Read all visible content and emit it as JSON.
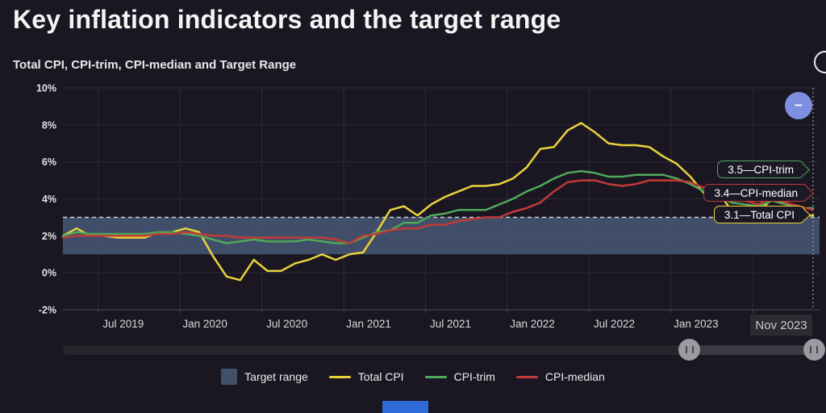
{
  "header": {
    "title": "Key inflation indicators and the target range",
    "subtitle": "Total CPI, CPI-trim, CPI-median and Target Range"
  },
  "chart_data": {
    "type": "line",
    "title": "Total CPI, CPI-trim, CPI-median and Target Range",
    "x_unit": "month",
    "x_range": [
      "Apr 2019",
      "Nov 2023"
    ],
    "x_tick_labels": [
      "Jul 2019",
      "Jan 2020",
      "Jul 2020",
      "Jan 2021",
      "Jul 2021",
      "Jan 2022",
      "Jul 2022",
      "Jan 2023"
    ],
    "x_tick_month_indices": [
      3,
      9,
      15,
      21,
      27,
      33,
      39,
      45
    ],
    "extra_gridline_month_indices": [
      51
    ],
    "ylim": [
      -2,
      10
    ],
    "y_tick_values": [
      -2,
      0,
      2,
      4,
      6,
      8,
      10
    ],
    "y_tick_suffix": "%",
    "grid": true,
    "target_range": {
      "label": "Target range",
      "low": 1,
      "high": 3,
      "color": "#445470",
      "top_edge": "dashed"
    },
    "end_line": {
      "x_label": "Nov 2023",
      "style": "dotted"
    },
    "series": [
      {
        "name": "Total CPI",
        "color": "#e9d23c",
        "last_value": 3.1,
        "end_label": "3.1—Total CPI",
        "values": [
          2.0,
          2.4,
          2.0,
          2.0,
          1.9,
          1.9,
          1.9,
          2.2,
          2.2,
          2.4,
          2.2,
          0.9,
          -0.2,
          -0.4,
          0.7,
          0.1,
          0.1,
          0.5,
          0.7,
          1.0,
          0.7,
          1.0,
          1.1,
          2.2,
          3.4,
          3.6,
          3.1,
          3.7,
          4.1,
          4.4,
          4.7,
          4.7,
          4.8,
          5.1,
          5.7,
          6.7,
          6.8,
          7.7,
          8.1,
          7.6,
          7.0,
          6.9,
          6.9,
          6.8,
          6.3,
          5.9,
          5.2,
          4.3,
          4.4,
          3.4,
          2.8,
          3.3,
          4.0,
          3.8,
          3.1,
          3.1
        ]
      },
      {
        "name": "CPI-trim",
        "color": "#4fa85a",
        "last_value": 3.5,
        "end_label": "3.5—CPI-trim",
        "values": [
          2.0,
          2.2,
          2.1,
          2.1,
          2.1,
          2.1,
          2.1,
          2.2,
          2.2,
          2.1,
          2.0,
          1.8,
          1.6,
          1.7,
          1.8,
          1.7,
          1.7,
          1.7,
          1.8,
          1.7,
          1.6,
          1.6,
          1.9,
          2.2,
          2.3,
          2.7,
          2.7,
          3.1,
          3.2,
          3.4,
          3.4,
          3.4,
          3.7,
          4.0,
          4.4,
          4.7,
          5.1,
          5.4,
          5.5,
          5.4,
          5.2,
          5.2,
          5.3,
          5.3,
          5.3,
          5.1,
          4.8,
          4.4,
          4.2,
          3.8,
          3.7,
          3.6,
          3.9,
          3.7,
          3.5,
          3.5
        ]
      },
      {
        "name": "CPI-median",
        "color": "#c13a38",
        "last_value": 3.4,
        "end_label": "3.4—CPI-median",
        "values": [
          1.9,
          2.0,
          2.0,
          2.0,
          2.0,
          2.0,
          2.0,
          2.1,
          2.1,
          2.2,
          2.1,
          2.0,
          2.0,
          1.9,
          1.9,
          1.9,
          1.9,
          1.9,
          1.9,
          1.9,
          1.8,
          1.6,
          2.0,
          2.1,
          2.3,
          2.4,
          2.4,
          2.6,
          2.6,
          2.8,
          2.9,
          3.0,
          3.0,
          3.3,
          3.5,
          3.8,
          4.4,
          4.9,
          5.0,
          5.0,
          4.8,
          4.7,
          4.8,
          5.0,
          5.0,
          5.0,
          4.9,
          4.6,
          4.3,
          3.9,
          3.9,
          3.7,
          4.1,
          3.8,
          3.6,
          3.4
        ]
      }
    ],
    "legend_position": "bottom"
  },
  "legend": {
    "items": [
      {
        "label": "Target range",
        "type": "band",
        "color": "#42506a"
      },
      {
        "label": "Total CPI",
        "type": "line",
        "color": "#e9d23c"
      },
      {
        "label": "CPI-trim",
        "type": "line",
        "color": "#4fa85a"
      },
      {
        "label": "CPI-median",
        "type": "line",
        "color": "#c13a38"
      }
    ]
  },
  "x_axis": {
    "end_date_label": "Nov 2023"
  },
  "slider": {
    "window": [
      0.828,
      0.993
    ]
  },
  "controls": {
    "zoom_out_glyph": "−"
  }
}
